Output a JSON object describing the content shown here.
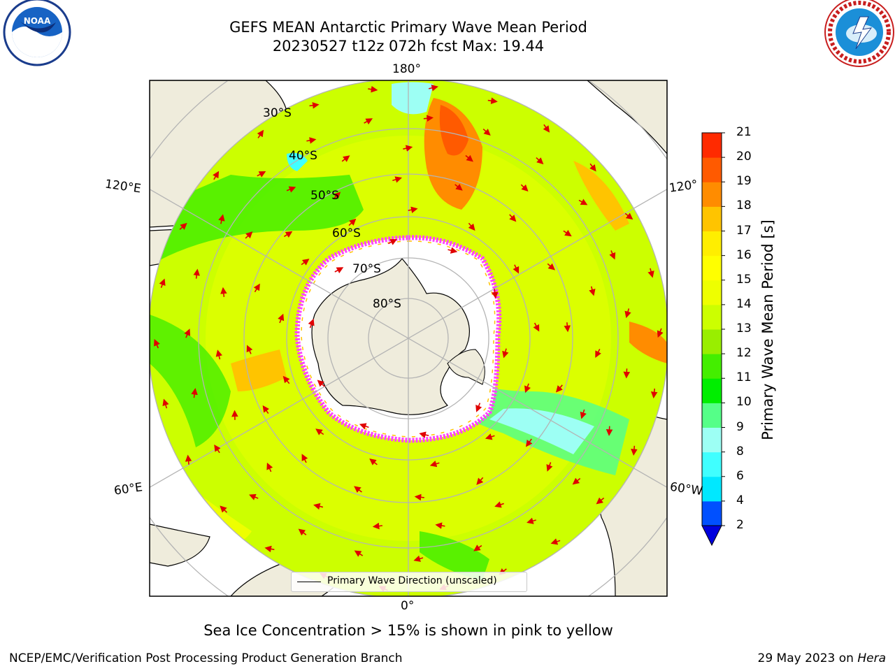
{
  "title": {
    "line1": "GEFS MEAN Antarctic Primary Wave Mean Period",
    "line2": "20230527 t12z 072h fcst   Max: 19.44"
  },
  "logos": {
    "left": "noaa-logo",
    "right": "national-weather-service-logo"
  },
  "map": {
    "projection": "south-polar-stereographic",
    "lon_labels": {
      "top": "180°",
      "bottom": "0°",
      "left_upper": "120°E",
      "left_lower": "60°E",
      "right_upper": "120°",
      "right_lower": "60°W"
    },
    "lat_labels": [
      "30°S",
      "40°S",
      "50°S",
      "60°S",
      "70°S",
      "80°S"
    ],
    "land_color": "#efecdc",
    "ice_color": "#ff44ff",
    "arrow_color": "#e00000"
  },
  "legend": {
    "label": "Primary Wave Direction (unscaled)"
  },
  "colorbar": {
    "label": "Primary Wave Mean Period [s]",
    "ticks": [
      "2",
      "4",
      "6",
      "8",
      "9",
      "10",
      "11",
      "12",
      "13",
      "14",
      "15",
      "16",
      "17",
      "18",
      "19",
      "20",
      "21"
    ],
    "colors": [
      "#0050ff",
      "#00e8ff",
      "#40ffff",
      "#9dfff4",
      "#55ff88",
      "#00ee00",
      "#44ee00",
      "#99ee00",
      "#ccff00",
      "#eeff00",
      "#ffff00",
      "#ffee00",
      "#ffc400",
      "#ff8c00",
      "#ff5a00",
      "#ff2a00"
    ],
    "under_color": "#0000dd"
  },
  "caption": "Sea Ice Concentration > 15% is shown in pink to yellow",
  "footer": {
    "left": "NCEP/EMC/Verification Post Processing Product Generation Branch",
    "right_text": "29 May 2023 on ",
    "right_italic": "Hera"
  }
}
